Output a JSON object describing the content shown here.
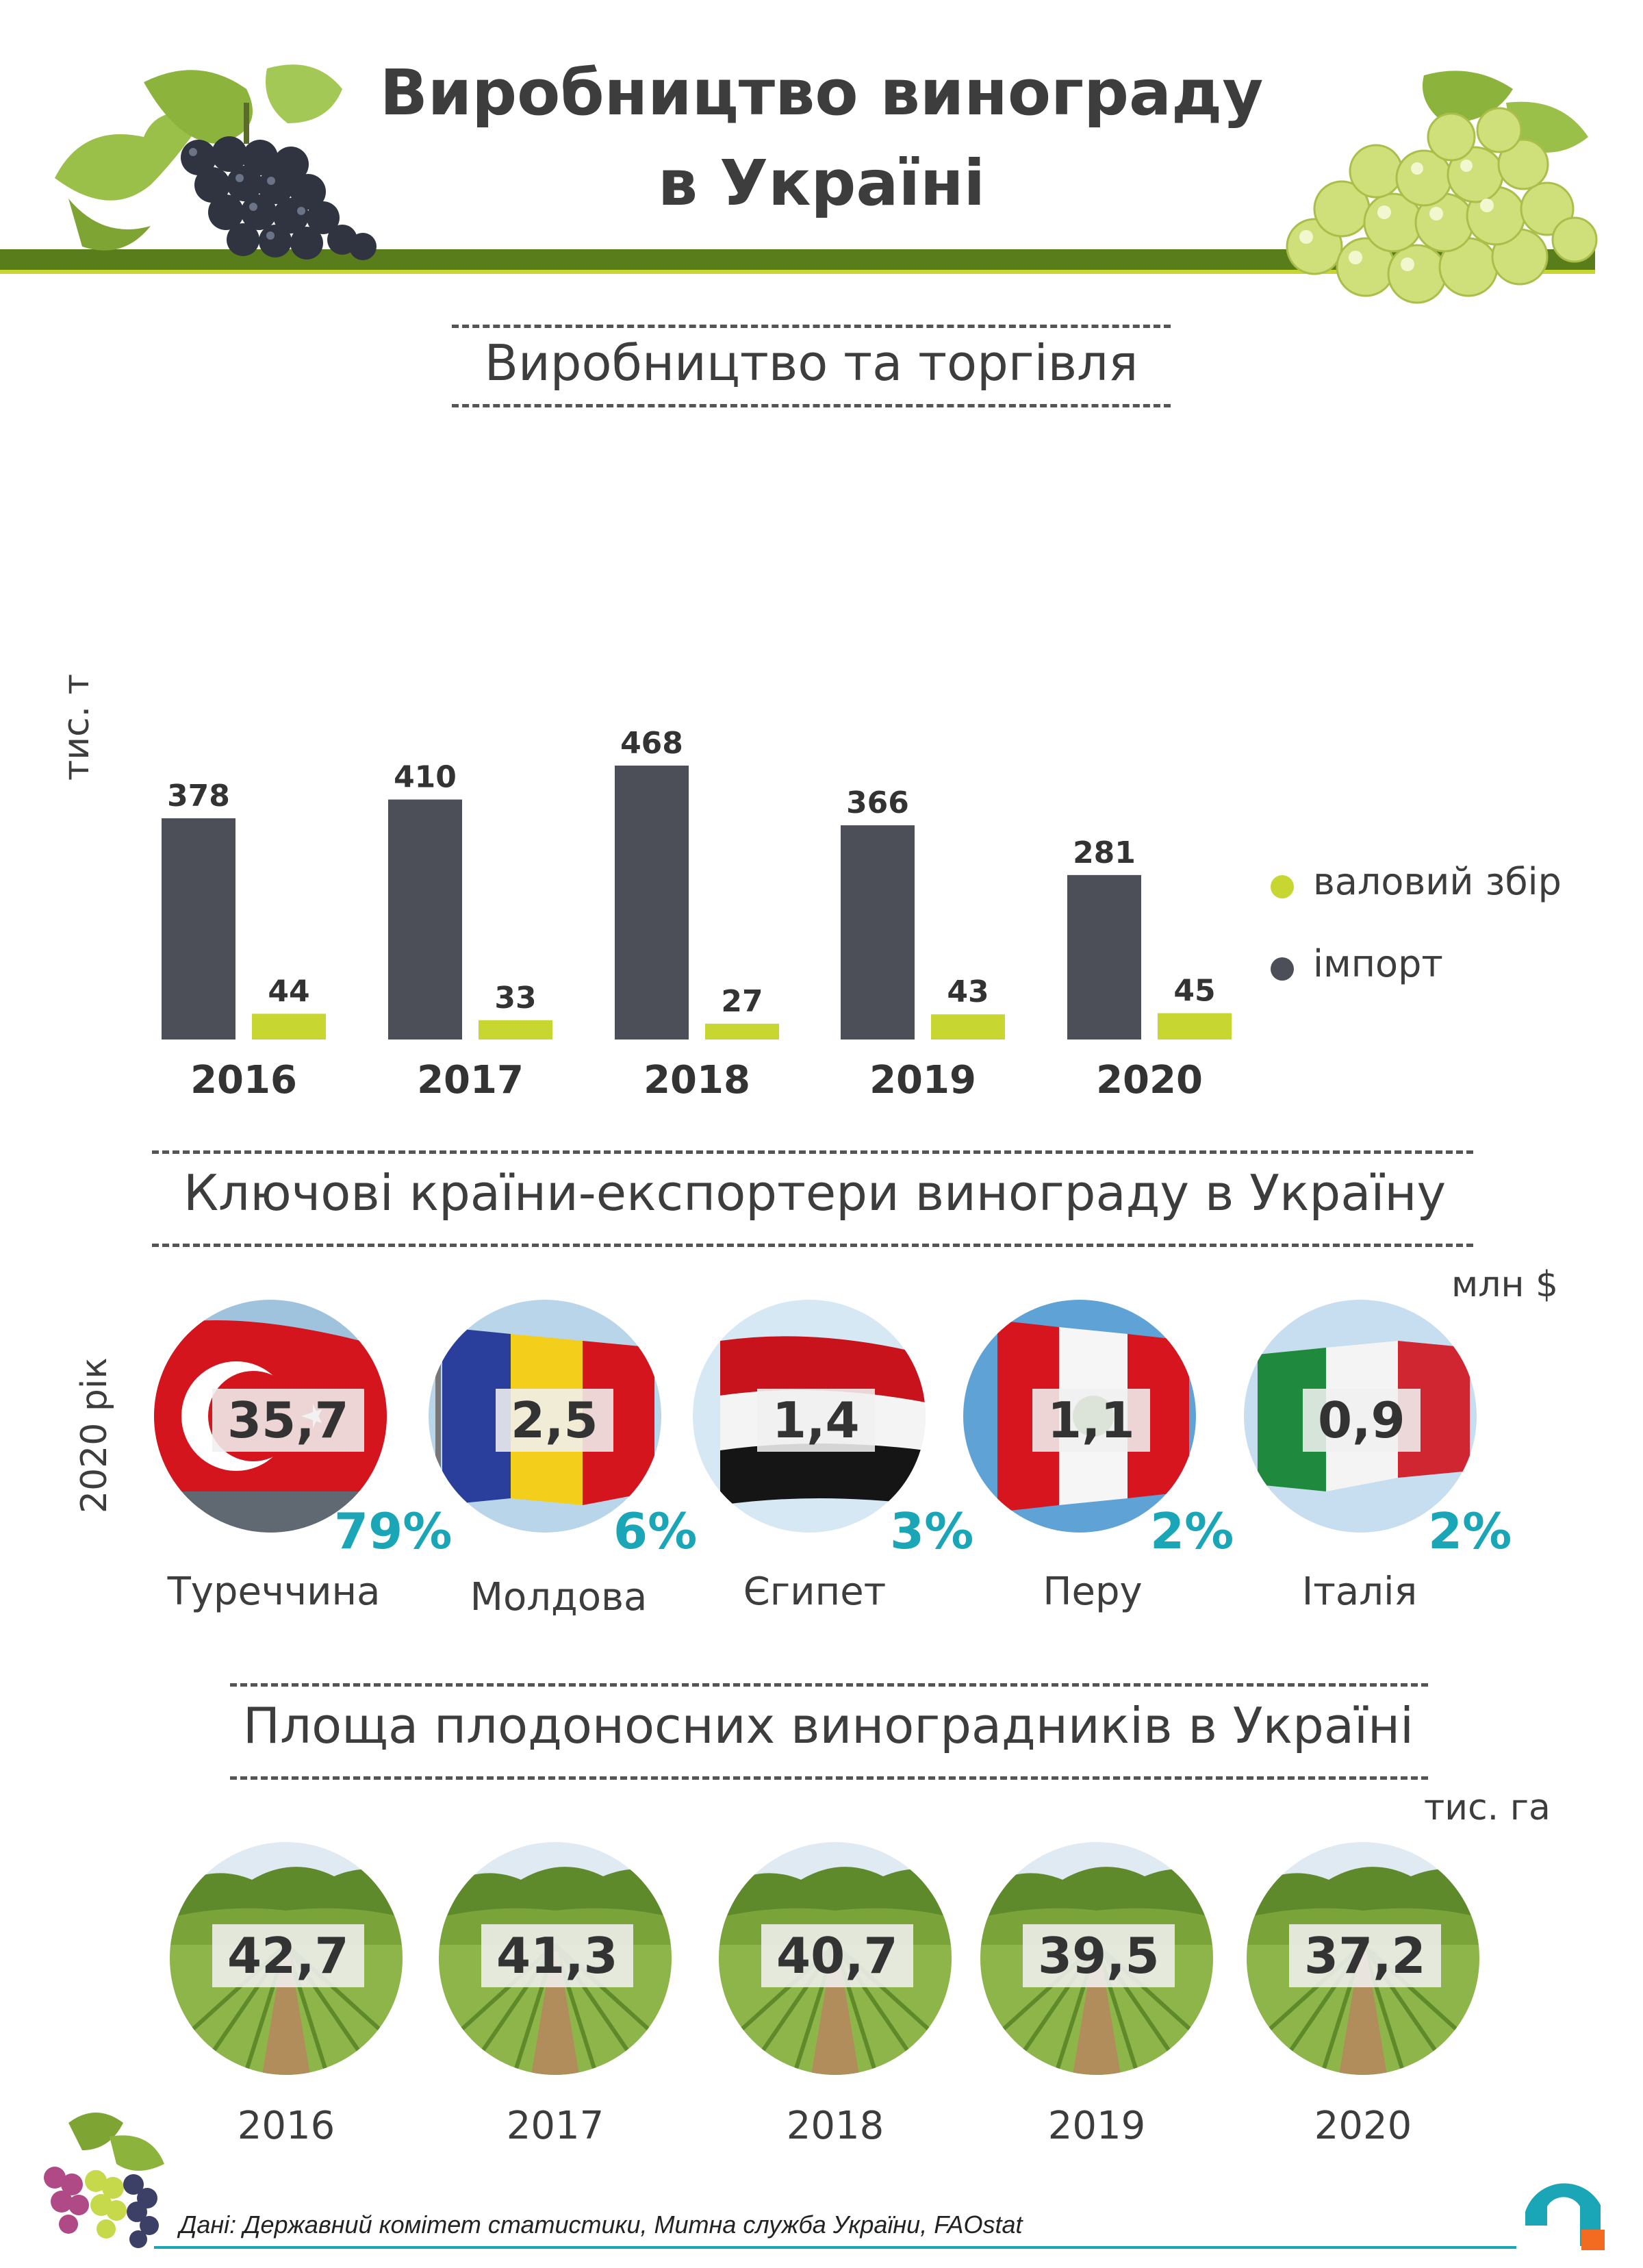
{
  "header": {
    "title_line1": "Виробництво винограду",
    "title_line2": "в Україні"
  },
  "colors": {
    "import": "#4d4f58",
    "harvest": "#c8d631",
    "accent": "#1aa6b7",
    "band": "#5a7d1c"
  },
  "production": {
    "title": "Виробництво та торгівля",
    "unit": "тис. т",
    "legend": {
      "harvest": "валовий збір",
      "import": "імпорт"
    }
  },
  "chart_data": {
    "type": "bar",
    "title": "Виробництво та торгівля",
    "ylabel": "тис. т",
    "categories": [
      "2016",
      "2017",
      "2018",
      "2019",
      "2020"
    ],
    "series": [
      {
        "name": "імпорт",
        "values": [
          378,
          410,
          468,
          366,
          281
        ]
      },
      {
        "name": "валовий збір",
        "values": [
          44,
          33,
          27,
          43,
          45
        ]
      }
    ]
  },
  "exporters": {
    "title": "Ключові країни-експортери винограду в Україну",
    "unit": "млн $",
    "year_label": "2020 рік",
    "items": [
      {
        "country": "Туреччина",
        "value": "35,7",
        "share": "79%"
      },
      {
        "country": "Молдова",
        "value": "2,5",
        "share": "6%"
      },
      {
        "country": "Єгипет",
        "value": "1,4",
        "share": "3%"
      },
      {
        "country": "Перу",
        "value": "1,1",
        "share": "2%"
      },
      {
        "country": "Італія",
        "value": "0,9",
        "share": "2%"
      }
    ]
  },
  "vineyards": {
    "title": "Площа плодоносних виноградників в Україні",
    "unit": "тис. га",
    "items": [
      {
        "year": "2016",
        "value": "42,7"
      },
      {
        "year": "2017",
        "value": "41,3"
      },
      {
        "year": "2018",
        "value": "40,7"
      },
      {
        "year": "2019",
        "value": "39,5"
      },
      {
        "year": "2020",
        "value": "37,2"
      }
    ]
  },
  "footer": {
    "source": "Дані: Державний комітет статистики, Митна служба України, FAOstat"
  }
}
